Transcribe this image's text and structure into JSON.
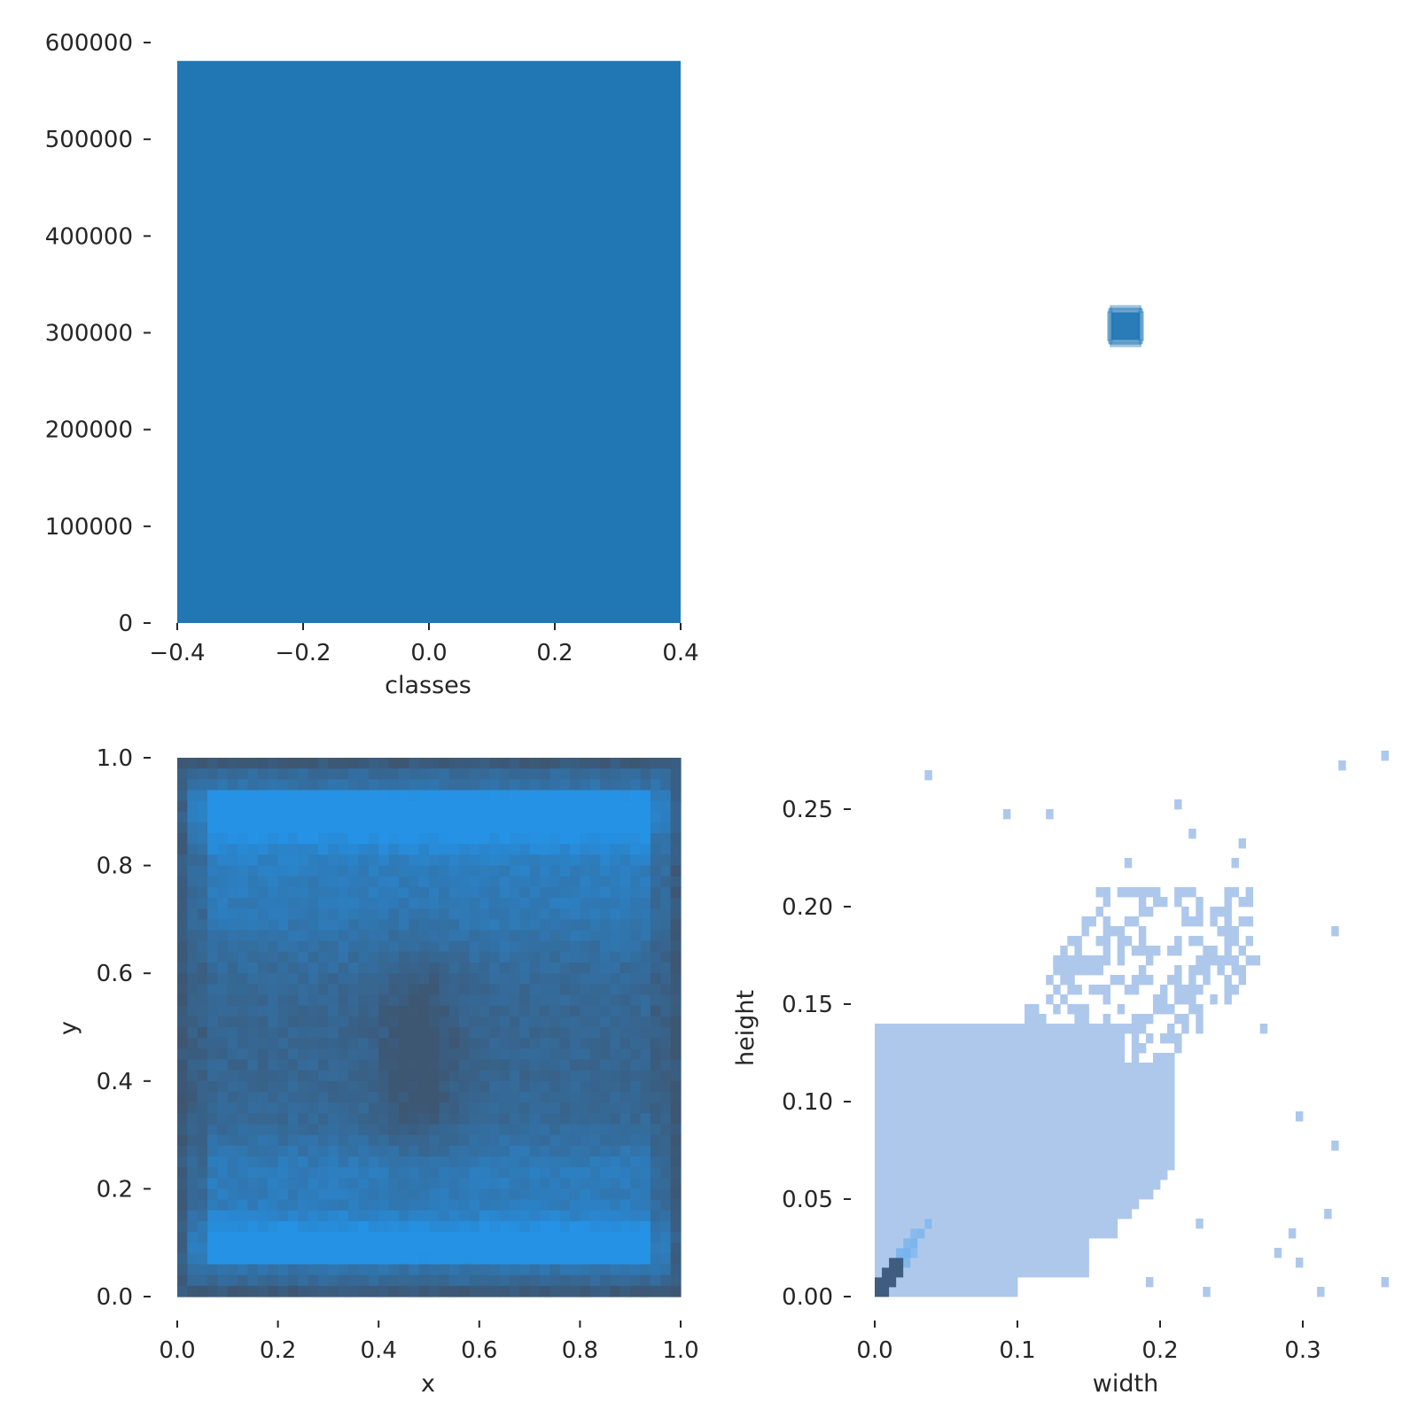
{
  "chart_data": [
    {
      "type": "bar",
      "panel": "top-left",
      "xlabel": "classes",
      "ylabel": "",
      "xlim": [
        -0.4,
        0.4
      ],
      "ylim": [
        0,
        600000
      ],
      "x_ticks": [
        "−0.4",
        "−0.2",
        "0.0",
        "0.2",
        "0.4"
      ],
      "y_ticks": [
        "0",
        "100000",
        "200000",
        "300000",
        "400000",
        "500000",
        "600000"
      ],
      "categories": [
        "0"
      ],
      "values": [
        581000
      ],
      "color": "#2077b4"
    },
    {
      "type": "scatter",
      "panel": "top-right",
      "description_markers": "overlapping bounding-box outlines centered on one point",
      "x": [
        0.5
      ],
      "y": [
        0.5
      ],
      "color": "#2077b4"
    },
    {
      "type": "heatmap",
      "panel": "bottom-left",
      "xlabel": "x",
      "ylabel": "y",
      "xlim": [
        0,
        1
      ],
      "ylim": [
        0,
        1
      ],
      "x_ticks": [
        "0.0",
        "0.2",
        "0.4",
        "0.6",
        "0.8",
        "1.0"
      ],
      "y_ticks": [
        "0.0",
        "0.2",
        "0.4",
        "0.6",
        "0.8",
        "1.0"
      ],
      "bins": 50,
      "colors": {
        "low": "#3d5672",
        "high": "#2592e5"
      }
    },
    {
      "type": "heatmap",
      "panel": "bottom-right",
      "xlabel": "width",
      "ylabel": "height",
      "xlim": [
        0,
        0.35
      ],
      "ylim": [
        0,
        0.28
      ],
      "x_ticks": [
        "0.0",
        "0.1",
        "0.2",
        "0.3"
      ],
      "y_ticks": [
        "0.00",
        "0.05",
        "0.10",
        "0.15",
        "0.20",
        "0.25"
      ],
      "bin_size": 0.005,
      "colors": {
        "low": "#aec8ec",
        "mid": "#4da3ee",
        "high": "#3f5d7e"
      }
    }
  ]
}
